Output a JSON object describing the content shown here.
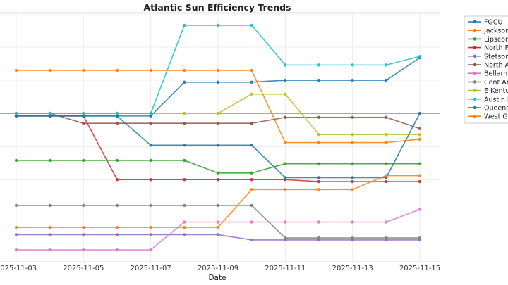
{
  "chart_data": {
    "type": "line",
    "title": "Atlantic Sun Efficiency Trends",
    "xlabel": "Date",
    "ylabel": "",
    "x": [
      "2025-11-03",
      "2025-11-04",
      "2025-11-05",
      "2025-11-06",
      "2025-11-07",
      "2025-11-08",
      "2025-11-09",
      "2025-11-10",
      "2025-11-11",
      "2025-11-12",
      "2025-11-13",
      "2025-11-14",
      "2025-11-15"
    ],
    "x_tick_labels": [
      "2025-11-03",
      "2025-11-05",
      "2025-11-07",
      "2025-11-09",
      "2025-11-11",
      "2025-11-13",
      "2025-11-15"
    ],
    "ylim": [
      -22.4,
      15.2
    ],
    "y_tick_labels_visible": false,
    "grid": true,
    "reference_line": 0,
    "legend_placement": "outside-right",
    "series": [
      {
        "name": "FGCU",
        "color": "#1f77b4",
        "values": [
          -0.4,
          -0.4,
          -0.4,
          -0.4,
          -0.4,
          4.7,
          4.7,
          4.7,
          5.0,
          5.0,
          5.0,
          5.0,
          8.4
        ]
      },
      {
        "name": "Jacksonv",
        "color": "#ff7f0e",
        "values": [
          6.5,
          6.5,
          6.5,
          6.5,
          6.5,
          6.5,
          6.5,
          6.5,
          -4.4,
          -4.4,
          -4.4,
          -4.4,
          -3.9
        ]
      },
      {
        "name": "Lipscoml",
        "color": "#2ca02c",
        "values": [
          -7.1,
          -7.1,
          -7.1,
          -7.1,
          -7.1,
          -7.1,
          -9.0,
          -9.0,
          -7.6,
          -7.6,
          -7.6,
          -7.6,
          -7.6
        ]
      },
      {
        "name": "North Flo",
        "color": "#d62728",
        "values": [
          -0.4,
          -0.4,
          -0.4,
          -10.0,
          -10.0,
          -10.0,
          -10.0,
          -10.0,
          -10.0,
          -10.3,
          -10.3,
          -10.3,
          -10.3
        ]
      },
      {
        "name": "Stetson",
        "color": "#9467bd",
        "values": [
          -18.3,
          -18.3,
          -18.3,
          -18.3,
          -18.3,
          -18.3,
          -18.3,
          -19.1,
          -19.1,
          -19.1,
          -19.1,
          -19.1,
          -19.1
        ]
      },
      {
        "name": "North Ala",
        "color": "#8c564b",
        "values": [
          0,
          0,
          -1.5,
          -1.5,
          -1.5,
          -1.5,
          -1.5,
          -1.5,
          -0.6,
          -0.6,
          -0.6,
          -0.6,
          -2.3
        ]
      },
      {
        "name": "Bellarmin",
        "color": "#e377c2",
        "values": [
          -20.6,
          -20.6,
          -20.6,
          -20.6,
          -20.6,
          -16.4,
          -16.4,
          -16.4,
          -16.4,
          -16.4,
          -16.4,
          -16.4,
          -14.5
        ]
      },
      {
        "name": "Cent Ark",
        "color": "#7f7f7f",
        "values": [
          -13.9,
          -13.9,
          -13.9,
          -13.9,
          -13.9,
          -13.9,
          -13.9,
          -13.9,
          -18.8,
          -18.8,
          -18.8,
          -18.8,
          -18.8
        ]
      },
      {
        "name": "E Kentuc",
        "color": "#bcbd22",
        "values": [
          0,
          0,
          0,
          0,
          0,
          0,
          0,
          2.9,
          2.9,
          -3.2,
          -3.2,
          -3.2,
          -3.2
        ]
      },
      {
        "name": "Austin Pe",
        "color": "#17becf",
        "values": [
          0,
          0,
          0,
          0,
          0,
          13.3,
          13.3,
          13.3,
          7.3,
          7.3,
          7.3,
          7.3,
          8.6
        ]
      },
      {
        "name": "Queens",
        "color": "#1f77b4",
        "values": [
          -0.4,
          -0.4,
          -0.4,
          -0.4,
          -4.8,
          -4.8,
          -4.8,
          -4.8,
          -9.7,
          -9.7,
          -9.7,
          -9.7,
          0
        ]
      },
      {
        "name": "West Ge",
        "color": "#ff7f0e",
        "values": [
          -17.2,
          -17.2,
          -17.2,
          -17.2,
          -17.2,
          -17.2,
          -17.2,
          -11.5,
          -11.5,
          -11.5,
          -11.5,
          -9.4,
          -9.4
        ]
      }
    ]
  }
}
